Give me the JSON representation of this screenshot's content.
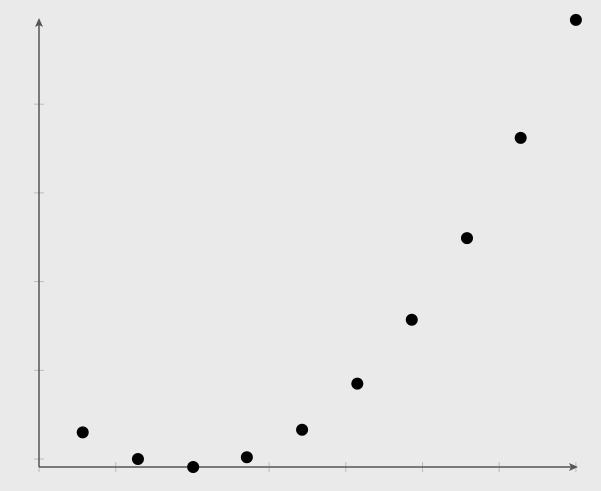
{
  "chart_data": {
    "type": "scatter",
    "title": "",
    "xlabel": "",
    "ylabel": "",
    "xlim": [
      -0.05,
      7.05
    ],
    "ylim": [
      -0.09,
      5.0
    ],
    "x_ticks": [
      0,
      1,
      2,
      3,
      4,
      5,
      6,
      7
    ],
    "y_ticks": [
      0,
      1,
      2,
      3,
      4
    ],
    "tick_labels_shown": false,
    "grid": false,
    "points": [
      {
        "x": 0.57,
        "y": 0.3
      },
      {
        "x": 1.29,
        "y": 0.0
      },
      {
        "x": 2.01,
        "y": -0.09
      },
      {
        "x": 2.71,
        "y": 0.02
      },
      {
        "x": 3.43,
        "y": 0.33
      },
      {
        "x": 4.15,
        "y": 0.85
      },
      {
        "x": 4.86,
        "y": 1.57
      },
      {
        "x": 5.58,
        "y": 2.49
      },
      {
        "x": 6.28,
        "y": 3.62
      },
      {
        "x": 7.0,
        "y": 4.95
      }
    ],
    "colors": {
      "background": "#eaeaea",
      "axis": "#555555",
      "tick": "#bbbbbb",
      "point": "#000000"
    }
  }
}
